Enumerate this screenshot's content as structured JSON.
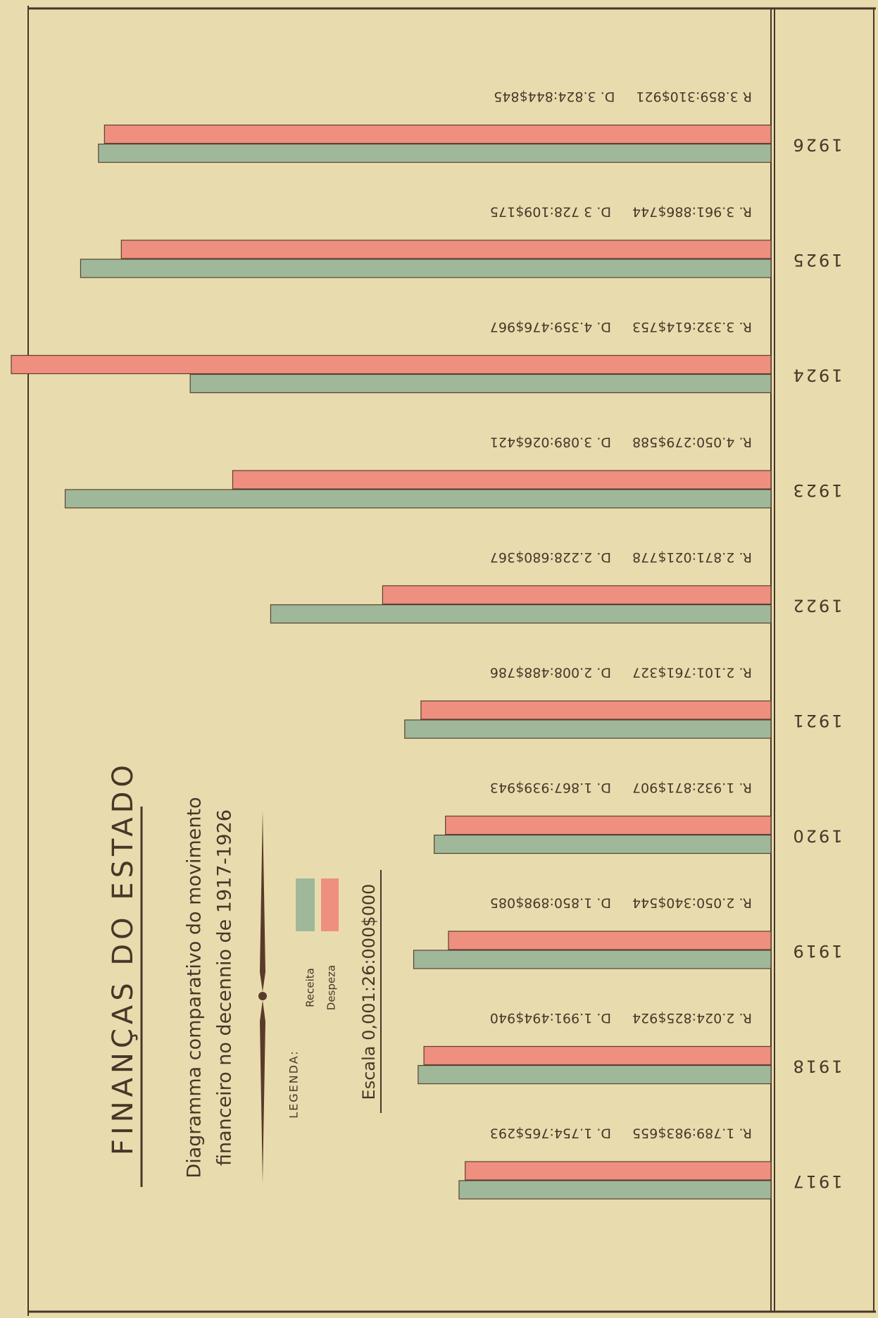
{
  "chart_data": {
    "type": "bar",
    "title": "FINANÇAS DO ESTADO",
    "subtitle": [
      "Diagramma comparativo do movimento",
      "financeiro no decennio de 1917-1926"
    ],
    "legend_title": "LEGENDA:",
    "scale_note": "Escala 0,001:26:000$000",
    "categories": [
      "1917",
      "1918",
      "1919",
      "1920",
      "1921",
      "1922",
      "1923",
      "1924",
      "1925",
      "1926"
    ],
    "series": [
      {
        "name": "Receita",
        "color": "#9fb89a",
        "values": [
          1789983.655,
          2024825.924,
          2050340.544,
          1932871.907,
          2101761.327,
          2871021.778,
          4050279.588,
          3332614.753,
          3961886.744,
          3859310.921
        ],
        "value_labels": [
          "R. 1.789:983$655",
          "R. 2.024:825$924",
          "R. 2.050:340$544",
          "R. 1.932:871$907",
          "R. 2.101:761$327",
          "R. 2.871:021$778",
          "R. 4.050:279$588",
          "R. 3.332:614$753",
          "R. 3.961:886$744",
          "R 3.859:310$921"
        ]
      },
      {
        "name": "Despeza",
        "color": "#ef8f80",
        "values": [
          1754765.293,
          1991494.94,
          1850898.085,
          1867939.943,
          2008488.786,
          2228680.367,
          3089026.421,
          4359476.967,
          3728109.175,
          3824844.845
        ],
        "value_labels": [
          "D. 1.754:765$293",
          "D. 1.991:494$940",
          "D. 1.850:898$085",
          "D. 1.867:939$943",
          "D. 2.008:488$786",
          "D. 2.228:680$367",
          "D. 3.089:026$421",
          "D. 4.359:476$967",
          "D. 3 728:109$175",
          "D. 3.824:844$845"
        ]
      }
    ],
    "xlim": [
      0,
      4400000
    ]
  }
}
